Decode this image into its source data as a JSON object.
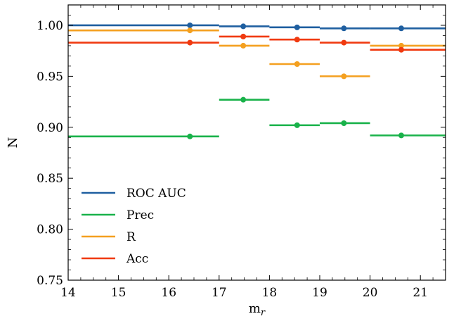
{
  "chart_data": {
    "type": "line",
    "xlabel": "m",
    "xlabel_sub": "r",
    "ylabel": "N",
    "xlim": [
      14,
      21.5
    ],
    "ylim": [
      0.75,
      1.02
    ],
    "xticks": [
      14,
      15,
      16,
      17,
      18,
      19,
      20,
      21
    ],
    "yticks": [
      0.75,
      0.8,
      0.85,
      0.9,
      0.95,
      1.0
    ],
    "xtick_labels": [
      "14",
      "15",
      "16",
      "17",
      "18",
      "19",
      "20",
      "21"
    ],
    "ytick_labels": [
      "0.75",
      "0.80",
      "0.85",
      "0.90",
      "0.95",
      "1.00"
    ],
    "legend_position": "lower-left",
    "bins": [
      {
        "x0": 14,
        "x1": 17
      },
      {
        "x0": 17,
        "x1": 18
      },
      {
        "x0": 18,
        "x1": 19
      },
      {
        "x0": 19,
        "x1": 20
      },
      {
        "x0": 20,
        "x1": 21.5
      }
    ],
    "series": [
      {
        "name": "ROC AUC",
        "color": "#1f5fa0",
        "x": [
          16.42,
          17.48,
          18.55,
          19.48,
          20.62
        ],
        "values": [
          1.0,
          0.999,
          0.998,
          0.997,
          0.997
        ]
      },
      {
        "name": "Prec",
        "color": "#19b24a",
        "x": [
          16.42,
          17.48,
          18.55,
          19.48,
          20.62
        ],
        "values": [
          0.891,
          0.927,
          0.902,
          0.904,
          0.892
        ]
      },
      {
        "name": "R",
        "color": "#f4a020",
        "x": [
          16.42,
          17.48,
          18.55,
          19.48,
          20.62
        ],
        "values": [
          0.995,
          0.98,
          0.962,
          0.95,
          0.98
        ]
      },
      {
        "name": "Acc",
        "color": "#f03a10",
        "x": [
          16.42,
          17.48,
          18.55,
          19.48,
          20.62
        ],
        "values": [
          0.983,
          0.989,
          0.986,
          0.983,
          0.976
        ]
      }
    ]
  }
}
